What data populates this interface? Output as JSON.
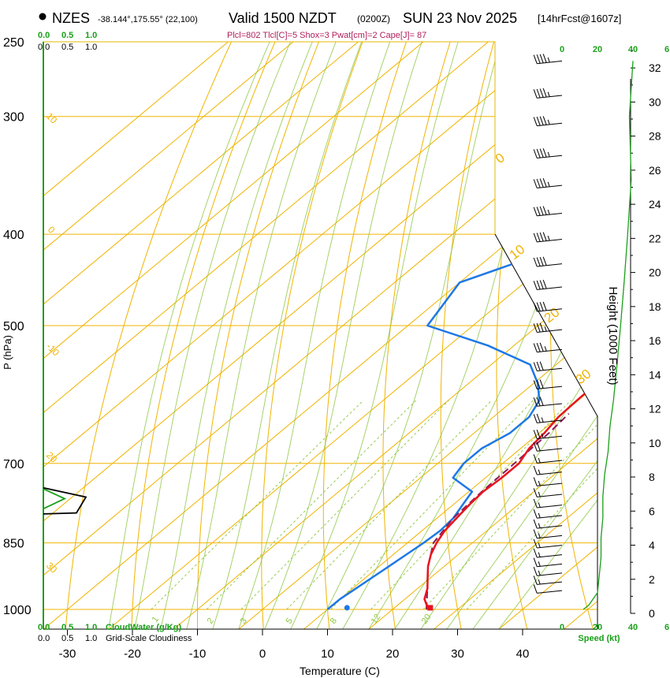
{
  "header": {
    "station": "NZES",
    "coords": "-38.144°,175.55° (22,100)",
    "valid": "Valid 1500 NZDT",
    "utc": "(0200Z)",
    "date": "SUN 23 Nov 2025",
    "forecast": "[14hrFcst@1607z]",
    "indices": "Plcl=802 Tlcl[C]=5 Shox=3 Pwat[cm]=2 Cape[J]= 87"
  },
  "labels": {
    "p_axis": "P (hPa)",
    "t_axis": "Temperature (C)",
    "height_axis": "Height (1000 Feet)",
    "cloudwater": "CloudWater (g/Kg)",
    "cloudiness": "Grid-Scale Cloudiness",
    "speed": "Speed (kt)"
  },
  "colors": {
    "isotherm": "#f0b400",
    "dry_adiabat": "#8cc63f",
    "moist_adiabat": "#8cc63f",
    "temp": "#e8141e",
    "dewpoint": "#1e78e6",
    "parcel": "#8b1a5a",
    "green": "#1aa01a"
  },
  "chart_data": {
    "type": "line",
    "title": "NZES Valid 1500 NZDT (0200Z) SUN 23 Nov 2025",
    "xlabel": "Temperature (C)",
    "ylabel": "P (hPa)",
    "xlim": [
      -35,
      45
    ],
    "ylim": [
      1000,
      250
    ],
    "x_ticks": [
      "-30",
      "-20",
      "-10",
      "0",
      "10",
      "20",
      "30",
      "40"
    ],
    "y_ticks": [
      {
        "p": 250,
        "label": "250"
      },
      {
        "p": 300,
        "label": "300"
      },
      {
        "p": 400,
        "label": "400"
      },
      {
        "p": 500,
        "label": "500"
      },
      {
        "p": 700,
        "label": "700"
      },
      {
        "p": 850,
        "label": "850"
      },
      {
        "p": 1000,
        "label": "1000"
      }
    ],
    "height_ticks": [
      "0",
      "2",
      "4",
      "6",
      "8",
      "10",
      "12",
      "14",
      "16",
      "18",
      "20",
      "22",
      "24",
      "26",
      "28",
      "30",
      "32"
    ],
    "dry_adiabat_labels": [
      "-30",
      "-20",
      "-10",
      "0",
      "10",
      "20",
      "30"
    ],
    "isotherm_labels": [
      "0",
      "10",
      "20",
      "30"
    ],
    "mixing_ratio_labels": [
      "1",
      "2",
      "3",
      "5",
      "8",
      "12",
      "20"
    ],
    "cloud_scale_top": [
      "0.0",
      "0.5",
      "1.0"
    ],
    "cloud_scale_bottom": [
      "0.0",
      "0.5",
      "1.0"
    ],
    "wind_speed_ticks": [
      "0",
      "20",
      "40",
      "6"
    ],
    "series": [
      {
        "name": "Temperature",
        "points": [
          {
            "p": 1000,
            "t": 25.5
          },
          {
            "p": 975,
            "t": 23.0
          },
          {
            "p": 950,
            "t": 21.5
          },
          {
            "p": 925,
            "t": 19.5
          },
          {
            "p": 900,
            "t": 17.5
          },
          {
            "p": 875,
            "t": 15.8
          },
          {
            "p": 850,
            "t": 14.5
          },
          {
            "p": 825,
            "t": 13.5
          },
          {
            "p": 800,
            "t": 13.0
          },
          {
            "p": 775,
            "t": 12.5
          },
          {
            "p": 750,
            "t": 12.2
          },
          {
            "p": 725,
            "t": 12.5
          },
          {
            "p": 700,
            "t": 12.5
          },
          {
            "p": 675,
            "t": 11.3
          },
          {
            "p": 650,
            "t": 10.8
          },
          {
            "p": 625,
            "t": 10.0
          },
          {
            "p": 600,
            "t": 9.8
          },
          {
            "p": 550,
            "t": 9.5
          },
          {
            "p": 500,
            "t": 7.0
          },
          {
            "p": 450,
            "t": 4.0
          },
          {
            "p": 400,
            "t": 1.5
          },
          {
            "p": 350,
            "t": -2.5
          },
          {
            "p": 300,
            "t": -3.0
          },
          {
            "p": 275,
            "t": -3.6
          },
          {
            "p": 262,
            "t": -4.6
          }
        ]
      },
      {
        "name": "Dewpoint",
        "points": [
          {
            "p": 1000,
            "t": 10.0
          },
          {
            "p": 975,
            "t": 10.0
          },
          {
            "p": 950,
            "t": 10.5
          },
          {
            "p": 925,
            "t": 11.0
          },
          {
            "p": 900,
            "t": 11.5
          },
          {
            "p": 875,
            "t": 12.0
          },
          {
            "p": 850,
            "t": 12.5
          },
          {
            "p": 825,
            "t": 12.8
          },
          {
            "p": 800,
            "t": 12.5
          },
          {
            "p": 775,
            "t": 11.5
          },
          {
            "p": 750,
            "t": 10.5
          },
          {
            "p": 725,
            "t": 5.0
          },
          {
            "p": 700,
            "t": 4.0
          },
          {
            "p": 675,
            "t": 4.0
          },
          {
            "p": 650,
            "t": 5.5
          },
          {
            "p": 625,
            "t": 5.5
          },
          {
            "p": 600,
            "t": 4.0
          },
          {
            "p": 575,
            "t": 0.5
          },
          {
            "p": 550,
            "t": -4.0
          },
          {
            "p": 525,
            "t": -14.0
          },
          {
            "p": 500,
            "t": -27.0
          },
          {
            "p": 450,
            "t": -30.0
          },
          {
            "p": 425,
            "t": -24.0
          },
          {
            "p": 400,
            "t": -19.5
          },
          {
            "p": 375,
            "t": -16.5
          },
          {
            "p": 350,
            "t": -16.0
          },
          {
            "p": 325,
            "t": -15.8
          },
          {
            "p": 300,
            "t": -17.5
          },
          {
            "p": 275,
            "t": -15.5
          },
          {
            "p": 262,
            "t": -13.0
          }
        ]
      },
      {
        "name": "Parcel",
        "points": [
          {
            "p": 1000,
            "t": 25.2
          },
          {
            "p": 950,
            "t": 21.5
          },
          {
            "p": 900,
            "t": 17.5
          },
          {
            "p": 850,
            "t": 14.0
          },
          {
            "p": 800,
            "t": 12.5
          },
          {
            "p": 750,
            "t": 12.0
          },
          {
            "p": 700,
            "t": 11.8
          },
          {
            "p": 650,
            "t": 11.5
          },
          {
            "p": 620,
            "t": 11.0
          }
        ]
      }
    ],
    "cloudwater_profile": [
      {
        "p": 745,
        "t": 0.0
      },
      {
        "p": 763,
        "t": 0.45
      },
      {
        "p": 782,
        "t": 0.0
      }
    ],
    "cloudiness_profile": [
      {
        "p": 743,
        "t": 0.0
      },
      {
        "p": 760,
        "t": 0.9
      },
      {
        "p": 790,
        "t": 0.7
      },
      {
        "p": 792,
        "t": 0.0
      }
    ],
    "wind_barbs": [
      {
        "p": 262,
        "speed": 45
      },
      {
        "p": 285,
        "speed": 45
      },
      {
        "p": 305,
        "speed": 45
      },
      {
        "p": 330,
        "speed": 45
      },
      {
        "p": 355,
        "speed": 45
      },
      {
        "p": 380,
        "speed": 45
      },
      {
        "p": 405,
        "speed": 45
      },
      {
        "p": 430,
        "speed": 40
      },
      {
        "p": 455,
        "speed": 40
      },
      {
        "p": 480,
        "speed": 40
      },
      {
        "p": 505,
        "speed": 35
      },
      {
        "p": 530,
        "speed": 35
      },
      {
        "p": 555,
        "speed": 30
      },
      {
        "p": 580,
        "speed": 30
      },
      {
        "p": 605,
        "speed": 30
      },
      {
        "p": 630,
        "speed": 25
      },
      {
        "p": 655,
        "speed": 25
      },
      {
        "p": 675,
        "speed": 20
      },
      {
        "p": 695,
        "speed": 15
      },
      {
        "p": 715,
        "speed": 15
      },
      {
        "p": 735,
        "speed": 15
      },
      {
        "p": 755,
        "speed": 15
      },
      {
        "p": 775,
        "speed": 15
      },
      {
        "p": 795,
        "speed": 15
      },
      {
        "p": 815,
        "speed": 15
      },
      {
        "p": 835,
        "speed": 15
      },
      {
        "p": 855,
        "speed": 15
      },
      {
        "p": 875,
        "speed": 15
      },
      {
        "p": 895,
        "speed": 15
      },
      {
        "p": 915,
        "speed": 15
      },
      {
        "p": 935,
        "speed": 15
      },
      {
        "p": 955,
        "speed": 10
      }
    ],
    "wind_speed_profile": [
      {
        "p": 262,
        "s": 40
      },
      {
        "p": 300,
        "s": 38
      },
      {
        "p": 350,
        "s": 39
      },
      {
        "p": 400,
        "s": 37
      },
      {
        "p": 450,
        "s": 35
      },
      {
        "p": 500,
        "s": 33
      },
      {
        "p": 550,
        "s": 31
      },
      {
        "p": 600,
        "s": 29
      },
      {
        "p": 640,
        "s": 27
      },
      {
        "p": 680,
        "s": 26
      },
      {
        "p": 720,
        "s": 24
      },
      {
        "p": 760,
        "s": 23
      },
      {
        "p": 800,
        "s": 23
      },
      {
        "p": 840,
        "s": 22
      },
      {
        "p": 880,
        "s": 22
      },
      {
        "p": 920,
        "s": 21
      },
      {
        "p": 960,
        "s": 20
      },
      {
        "p": 990,
        "s": 15
      },
      {
        "p": 1000,
        "s": 12
      }
    ]
  }
}
